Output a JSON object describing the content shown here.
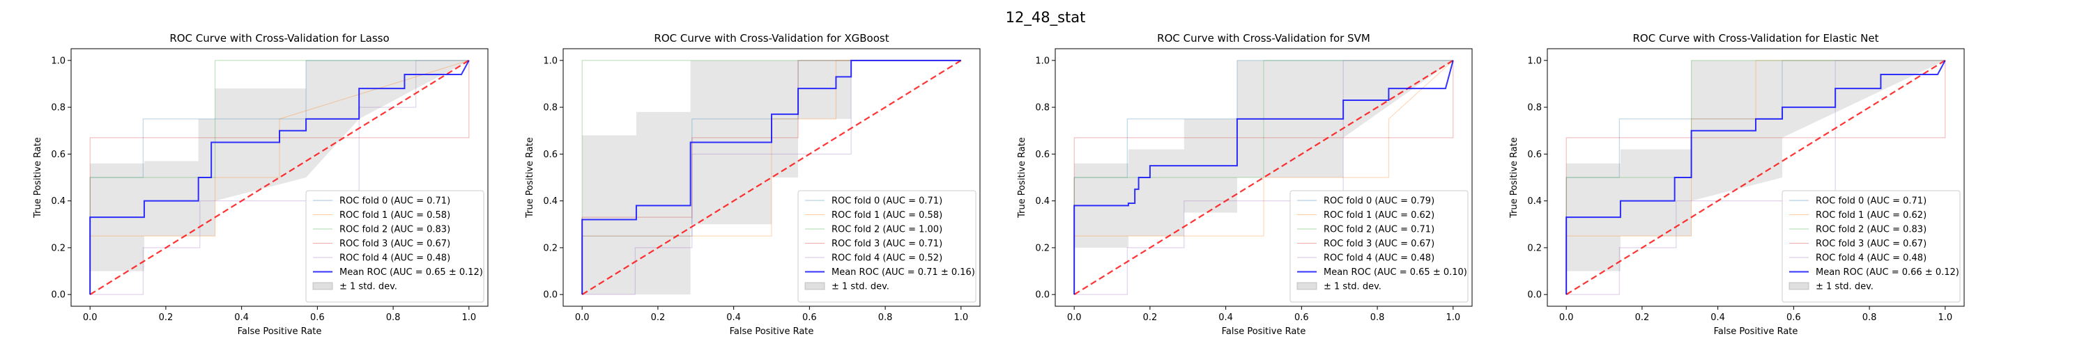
{
  "figure": {
    "suptitle": "12_48_stat"
  },
  "colors": {
    "folds": [
      "#1f77b4",
      "#ff7f0e",
      "#2ca02c",
      "#d62728",
      "#9467bd"
    ],
    "mean": "#0000ff",
    "chance": "#ff0000",
    "band": "#808080"
  },
  "chart_data": [
    {
      "type": "line",
      "title": "ROC Curve with Cross-Validation for Lasso",
      "xlabel": "False Positive Rate",
      "ylabel": "True Positive Rate",
      "xlim": [
        -0.05,
        1.05
      ],
      "ylim": [
        -0.05,
        1.05
      ],
      "xticks": [
        "0.0",
        "0.2",
        "0.4",
        "0.6",
        "0.8",
        "1.0"
      ],
      "yticks": [
        "0.0",
        "0.2",
        "0.4",
        "0.6",
        "0.8",
        "1.0"
      ],
      "legend_position": "lower right",
      "series": [
        {
          "name": "ROC fold 0 (AUC = 0.71)",
          "x": [
            0,
            0,
            0.14,
            0.14,
            0.57,
            0.57,
            1.0
          ],
          "y": [
            0,
            0.5,
            0.5,
            0.75,
            0.75,
            1.0,
            1.0
          ]
        },
        {
          "name": "ROC fold 1 (AUC = 0.58)",
          "x": [
            0,
            0,
            0.33,
            0.33,
            0.5,
            0.5,
            1.0
          ],
          "y": [
            0,
            0.25,
            0.25,
            0.5,
            0.5,
            0.75,
            1.0
          ]
        },
        {
          "name": "ROC fold 2 (AUC = 0.83)",
          "x": [
            0,
            0,
            0.33,
            0.33,
            1.0
          ],
          "y": [
            0,
            0.5,
            0.5,
            1.0,
            1.0
          ]
        },
        {
          "name": "ROC fold 3 (AUC = 0.67)",
          "x": [
            0,
            0,
            1.0,
            1.0
          ],
          "y": [
            0,
            0.67,
            0.67,
            1.0
          ]
        },
        {
          "name": "ROC fold 4 (AUC = 0.48)",
          "x": [
            0,
            0.14,
            0.14,
            0.29,
            0.29,
            0.71,
            0.71,
            0.86,
            0.86,
            1.0
          ],
          "y": [
            0,
            0,
            0.2,
            0.2,
            0.4,
            0.4,
            0.8,
            0.8,
            1.0,
            1.0
          ]
        },
        {
          "name": "Mean ROC (AUC = 0.65 ± 0.12)",
          "x": [
            0,
            0,
            0.143,
            0.143,
            0.286,
            0.286,
            0.32,
            0.32,
            0.5,
            0.5,
            0.57,
            0.57,
            0.71,
            0.71,
            0.83,
            0.83,
            0.98,
            1.0
          ],
          "y": [
            0,
            0.33,
            0.33,
            0.4,
            0.4,
            0.5,
            0.5,
            0.65,
            0.65,
            0.7,
            0.7,
            0.75,
            0.75,
            0.88,
            0.88,
            0.94,
            0.94,
            1.0
          ]
        },
        {
          "name": "± 1 std. dev."
        }
      ],
      "band_x": [
        0,
        0.143,
        0.143,
        0.286,
        0.286,
        0.33,
        0.33,
        0.57,
        0.57,
        0.71,
        0.71,
        1.0
      ],
      "band_upper": [
        0.56,
        0.56,
        0.57,
        0.57,
        0.75,
        0.75,
        0.88,
        0.88,
        1.0,
        1.0,
        1.0,
        1.0
      ],
      "band_lower": [
        0.1,
        0.1,
        0.25,
        0.25,
        0.25,
        0.25,
        0.4,
        0.5,
        0.5,
        0.75,
        0.75,
        1.0
      ],
      "chance": {
        "x": [
          0,
          1
        ],
        "y": [
          0,
          1
        ]
      }
    },
    {
      "type": "line",
      "title": "ROC Curve with Cross-Validation for XGBoost",
      "xlabel": "False Positive Rate",
      "ylabel": "True Positive Rate",
      "xlim": [
        -0.05,
        1.05
      ],
      "ylim": [
        -0.05,
        1.05
      ],
      "xticks": [
        "0.0",
        "0.2",
        "0.4",
        "0.6",
        "0.8",
        "1.0"
      ],
      "yticks": [
        "0.0",
        "0.2",
        "0.4",
        "0.6",
        "0.8",
        "1.0"
      ],
      "legend_position": "lower right",
      "series": [
        {
          "name": "ROC fold 0 (AUC = 0.71)",
          "x": [
            0,
            0,
            0.29,
            0.29,
            0.57,
            0.57,
            1.0
          ],
          "y": [
            0,
            0.25,
            0.25,
            0.75,
            0.75,
            1.0,
            1.0
          ]
        },
        {
          "name": "ROC fold 1 (AUC = 0.58)",
          "x": [
            0,
            0,
            0.5,
            0.5,
            0.67,
            0.67,
            1.0
          ],
          "y": [
            0,
            0.25,
            0.25,
            0.75,
            0.75,
            1.0,
            1.0
          ]
        },
        {
          "name": "ROC fold 2 (AUC = 1.00)",
          "x": [
            0,
            0,
            1.0
          ],
          "y": [
            0,
            1.0,
            1.0
          ]
        },
        {
          "name": "ROC fold 3 (AUC = 0.71)",
          "x": [
            0,
            0,
            0.29,
            0.29,
            0.57,
            0.57,
            1.0
          ],
          "y": [
            0,
            0.33,
            0.33,
            0.67,
            0.67,
            1.0,
            1.0
          ]
        },
        {
          "name": "ROC fold 4 (AUC = 0.52)",
          "x": [
            0,
            0.14,
            0.14,
            0.29,
            0.29,
            0.71,
            0.71,
            1.0
          ],
          "y": [
            0,
            0,
            0.2,
            0.2,
            0.6,
            0.6,
            1.0,
            1.0
          ]
        },
        {
          "name": "Mean ROC (AUC = 0.71 ± 0.16)",
          "x": [
            0,
            0,
            0.143,
            0.143,
            0.286,
            0.286,
            0.5,
            0.5,
            0.57,
            0.57,
            0.67,
            0.67,
            0.71,
            0.71,
            1.0
          ],
          "y": [
            0,
            0.32,
            0.32,
            0.38,
            0.38,
            0.65,
            0.65,
            0.77,
            0.77,
            0.88,
            0.88,
            0.93,
            0.93,
            1.0,
            1.0
          ]
        },
        {
          "name": "± 1 std. dev."
        }
      ],
      "band_x": [
        0,
        0.143,
        0.143,
        0.286,
        0.286,
        0.5,
        0.5,
        0.57,
        0.57,
        0.71,
        0.71,
        1.0
      ],
      "band_upper": [
        0.68,
        0.68,
        0.78,
        0.78,
        1.0,
        1.0,
        1.0,
        1.0,
        1.0,
        1.0,
        1.0,
        1.0
      ],
      "band_lower": [
        0.0,
        0.0,
        0.0,
        0.0,
        0.3,
        0.3,
        0.5,
        0.5,
        0.75,
        0.75,
        1.0,
        1.0
      ],
      "chance": {
        "x": [
          0,
          1
        ],
        "y": [
          0,
          1
        ]
      }
    },
    {
      "type": "line",
      "title": "ROC Curve with Cross-Validation for SVM",
      "xlabel": "False Positive Rate",
      "ylabel": "True Positive Rate",
      "xlim": [
        -0.05,
        1.05
      ],
      "ylim": [
        -0.05,
        1.05
      ],
      "xticks": [
        "0.0",
        "0.2",
        "0.4",
        "0.6",
        "0.8",
        "1.0"
      ],
      "yticks": [
        "0.0",
        "0.2",
        "0.4",
        "0.6",
        "0.8",
        "1.0"
      ],
      "legend_position": "lower right",
      "series": [
        {
          "name": "ROC fold 0 (AUC = 0.79)",
          "x": [
            0,
            0,
            0.14,
            0.14,
            0.43,
            0.43,
            1.0
          ],
          "y": [
            0,
            0.5,
            0.5,
            0.75,
            0.75,
            1.0,
            1.0
          ]
        },
        {
          "name": "ROC fold 1 (AUC = 0.62)",
          "x": [
            0,
            0,
            0.5,
            0.5,
            0.83,
            0.83,
            1.0
          ],
          "y": [
            0,
            0.25,
            0.25,
            0.5,
            0.5,
            0.75,
            1.0
          ]
        },
        {
          "name": "ROC fold 2 (AUC = 0.71)",
          "x": [
            0,
            0,
            0.5,
            0.5,
            1.0
          ],
          "y": [
            0,
            0.5,
            0.5,
            1.0,
            1.0
          ]
        },
        {
          "name": "ROC fold 3 (AUC = 0.67)",
          "x": [
            0,
            0,
            1.0,
            1.0
          ],
          "y": [
            0,
            0.67,
            0.67,
            1.0
          ]
        },
        {
          "name": "ROC fold 4 (AUC = 0.48)",
          "x": [
            0,
            0.14,
            0.14,
            0.29,
            0.29,
            0.71,
            0.71,
            1.0
          ],
          "y": [
            0,
            0,
            0.2,
            0.2,
            0.4,
            0.4,
            1.0,
            1.0
          ]
        },
        {
          "name": "Mean ROC (AUC = 0.65 ± 0.10)",
          "x": [
            0,
            0,
            0.143,
            0.143,
            0.16,
            0.16,
            0.17,
            0.17,
            0.2,
            0.2,
            0.43,
            0.43,
            0.71,
            0.71,
            0.83,
            0.83,
            0.98,
            1.0
          ],
          "y": [
            0,
            0.38,
            0.38,
            0.39,
            0.39,
            0.45,
            0.45,
            0.5,
            0.5,
            0.55,
            0.55,
            0.75,
            0.75,
            0.83,
            0.83,
            0.88,
            0.88,
            1.0
          ]
        },
        {
          "name": "± 1 std. dev."
        }
      ],
      "band_x": [
        0,
        0.143,
        0.143,
        0.29,
        0.29,
        0.43,
        0.43,
        0.71,
        0.71,
        1.0
      ],
      "band_upper": [
        0.56,
        0.56,
        0.62,
        0.62,
        0.75,
        0.75,
        1.0,
        1.0,
        1.0,
        1.0
      ],
      "band_lower": [
        0.2,
        0.2,
        0.25,
        0.25,
        0.35,
        0.35,
        0.5,
        0.5,
        0.67,
        1.0
      ],
      "chance": {
        "x": [
          0,
          1
        ],
        "y": [
          0,
          1
        ]
      }
    },
    {
      "type": "line",
      "title": "ROC Curve with Cross-Validation for Elastic Net",
      "xlabel": "False Positive Rate",
      "ylabel": "True Positive Rate",
      "xlim": [
        -0.05,
        1.05
      ],
      "ylim": [
        -0.05,
        1.05
      ],
      "xticks": [
        "0.0",
        "0.2",
        "0.4",
        "0.6",
        "0.8",
        "1.0"
      ],
      "yticks": [
        "0.0",
        "0.2",
        "0.4",
        "0.6",
        "0.8",
        "1.0"
      ],
      "legend_position": "lower right",
      "series": [
        {
          "name": "ROC fold 0 (AUC = 0.71)",
          "x": [
            0,
            0,
            0.14,
            0.14,
            0.57,
            0.57,
            1.0
          ],
          "y": [
            0,
            0.5,
            0.5,
            0.75,
            0.75,
            1.0,
            1.0
          ]
        },
        {
          "name": "ROC fold 1 (AUC = 0.62)",
          "x": [
            0,
            0,
            0.33,
            0.33,
            0.5,
            0.5,
            1.0
          ],
          "y": [
            0,
            0.25,
            0.25,
            0.75,
            0.75,
            1.0,
            1.0
          ]
        },
        {
          "name": "ROC fold 2 (AUC = 0.83)",
          "x": [
            0,
            0,
            0.33,
            0.33,
            1.0
          ],
          "y": [
            0,
            0.5,
            0.5,
            1.0,
            1.0
          ]
        },
        {
          "name": "ROC fold 3 (AUC = 0.67)",
          "x": [
            0,
            0,
            1.0,
            1.0
          ],
          "y": [
            0,
            0.67,
            0.67,
            1.0
          ]
        },
        {
          "name": "ROC fold 4 (AUC = 0.48)",
          "x": [
            0,
            0.14,
            0.14,
            0.29,
            0.29,
            0.71,
            0.71,
            1.0
          ],
          "y": [
            0,
            0,
            0.2,
            0.2,
            0.4,
            0.4,
            1.0,
            1.0
          ]
        },
        {
          "name": "Mean ROC (AUC = 0.66 ± 0.12)",
          "x": [
            0,
            0,
            0.143,
            0.143,
            0.286,
            0.286,
            0.33,
            0.33,
            0.5,
            0.5,
            0.57,
            0.57,
            0.71,
            0.71,
            0.83,
            0.83,
            0.98,
            1.0
          ],
          "y": [
            0,
            0.33,
            0.33,
            0.4,
            0.4,
            0.5,
            0.5,
            0.7,
            0.7,
            0.75,
            0.75,
            0.8,
            0.8,
            0.88,
            0.88,
            0.94,
            0.94,
            1.0
          ]
        },
        {
          "name": "± 1 std. dev."
        }
      ],
      "band_x": [
        0,
        0.143,
        0.143,
        0.33,
        0.33,
        0.57,
        0.57,
        1.0
      ],
      "band_upper": [
        0.56,
        0.56,
        0.62,
        0.62,
        1.0,
        1.0,
        1.0,
        1.0
      ],
      "band_lower": [
        0.1,
        0.1,
        0.25,
        0.25,
        0.4,
        0.5,
        0.67,
        1.0
      ],
      "chance": {
        "x": [
          0,
          1
        ],
        "y": [
          0,
          1
        ]
      }
    }
  ]
}
